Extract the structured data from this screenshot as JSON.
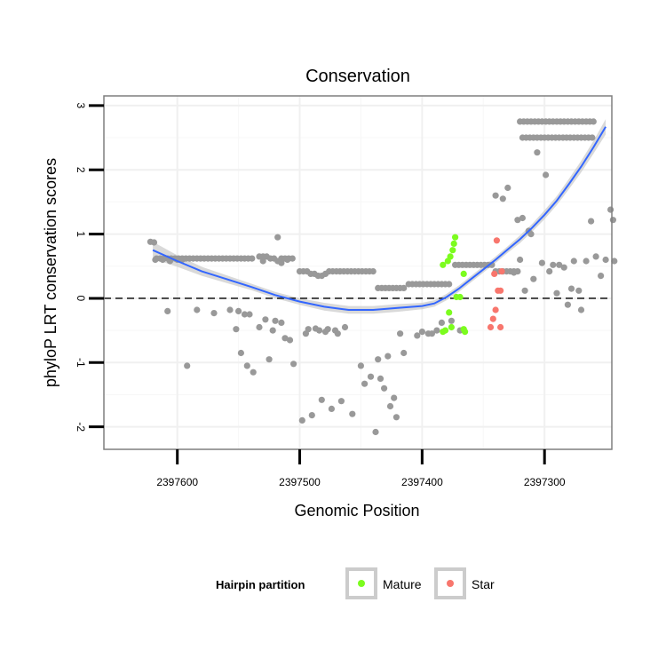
{
  "chart_data": {
    "type": "scatter",
    "title": "Conservation",
    "xlabel": "Genomic Position",
    "ylabel": "phyloP LRT conservation scores",
    "x_reversed": true,
    "xlim": [
      2397660,
      2397245
    ],
    "ylim": [
      -2.35,
      3.15
    ],
    "x_ticks": [
      2397600,
      2397500,
      2397400,
      2397300
    ],
    "x_tick_labels": [
      "2397600",
      "2397500",
      "2397400",
      "2397300"
    ],
    "y_ticks": [
      -2,
      -1,
      0,
      1,
      2,
      3
    ],
    "y_tick_labels": [
      "-2",
      "-1",
      "0",
      "1",
      "2",
      "3"
    ],
    "reference_line": {
      "y": 0,
      "style": "dashed"
    },
    "legend": {
      "title": "Hairpin partition",
      "placement": "bottom",
      "entries": [
        {
          "label": "Mature",
          "color": "#7CFC1E"
        },
        {
          "label": "Star",
          "color": "#F8766D"
        }
      ]
    },
    "colors": {
      "background_points": "#999999",
      "mature": "#7CFC1E",
      "star": "#F8766D",
      "smooth": "#3366FF",
      "ribbon": "#CCCCCC"
    },
    "series": [
      {
        "name": "Background",
        "points": [
          [
            2397619,
            0.87
          ],
          [
            2397617,
            0.62
          ],
          [
            2397614,
            0.62
          ],
          [
            2397611,
            0.62
          ],
          [
            2397608,
            0.62
          ],
          [
            2397605,
            0.62
          ],
          [
            2397602,
            0.62
          ],
          [
            2397599,
            0.62
          ],
          [
            2397596,
            0.62
          ],
          [
            2397593,
            0.62
          ],
          [
            2397590,
            0.62
          ],
          [
            2397587,
            0.62
          ],
          [
            2397584,
            0.62
          ],
          [
            2397581,
            0.62
          ],
          [
            2397578,
            0.62
          ],
          [
            2397575,
            0.62
          ],
          [
            2397572,
            0.62
          ],
          [
            2397569,
            0.62
          ],
          [
            2397566,
            0.62
          ],
          [
            2397563,
            0.62
          ],
          [
            2397560,
            0.62
          ],
          [
            2397557,
            0.62
          ],
          [
            2397554,
            0.62
          ],
          [
            2397551,
            0.62
          ],
          [
            2397548,
            0.62
          ],
          [
            2397545,
            0.62
          ],
          [
            2397542,
            0.62
          ],
          [
            2397539,
            0.62
          ],
          [
            2397533,
            0.65
          ],
          [
            2397530,
            0.65
          ],
          [
            2397527,
            0.65
          ],
          [
            2397524,
            0.62
          ],
          [
            2397521,
            0.62
          ],
          [
            2397518,
            0.58
          ],
          [
            2397515,
            0.62
          ],
          [
            2397512,
            0.62
          ],
          [
            2397509,
            0.62
          ],
          [
            2397506,
            0.62
          ],
          [
            2397618,
            0.6
          ],
          [
            2397612,
            0.6
          ],
          [
            2397606,
            0.58
          ],
          [
            2397600,
            0.6
          ],
          [
            2397596,
            0.6
          ],
          [
            2397530,
            0.58
          ],
          [
            2397515,
            0.55
          ],
          [
            2397510,
            0.6
          ],
          [
            2397500,
            0.42
          ],
          [
            2397497,
            0.42
          ],
          [
            2397494,
            0.42
          ],
          [
            2397491,
            0.38
          ],
          [
            2397488,
            0.38
          ],
          [
            2397485,
            0.35
          ],
          [
            2397482,
            0.35
          ],
          [
            2397479,
            0.38
          ],
          [
            2397476,
            0.42
          ],
          [
            2397473,
            0.42
          ],
          [
            2397470,
            0.42
          ],
          [
            2397467,
            0.42
          ],
          [
            2397464,
            0.42
          ],
          [
            2397461,
            0.42
          ],
          [
            2397458,
            0.42
          ],
          [
            2397455,
            0.42
          ],
          [
            2397452,
            0.42
          ],
          [
            2397449,
            0.42
          ],
          [
            2397446,
            0.42
          ],
          [
            2397443,
            0.42
          ],
          [
            2397440,
            0.42
          ],
          [
            2397436,
            0.16
          ],
          [
            2397433,
            0.16
          ],
          [
            2397430,
            0.16
          ],
          [
            2397427,
            0.16
          ],
          [
            2397424,
            0.16
          ],
          [
            2397421,
            0.16
          ],
          [
            2397418,
            0.16
          ],
          [
            2397415,
            0.16
          ],
          [
            2397411,
            0.22
          ],
          [
            2397408,
            0.22
          ],
          [
            2397405,
            0.22
          ],
          [
            2397402,
            0.22
          ],
          [
            2397399,
            0.22
          ],
          [
            2397396,
            0.22
          ],
          [
            2397393,
            0.22
          ],
          [
            2397390,
            0.22
          ],
          [
            2397387,
            0.22
          ],
          [
            2397384,
            0.22
          ],
          [
            2397381,
            0.22
          ],
          [
            2397378,
            0.22
          ],
          [
            2397373,
            0.52
          ],
          [
            2397370,
            0.52
          ],
          [
            2397367,
            0.52
          ],
          [
            2397364,
            0.52
          ],
          [
            2397361,
            0.52
          ],
          [
            2397358,
            0.52
          ],
          [
            2397355,
            0.52
          ],
          [
            2397352,
            0.52
          ],
          [
            2397349,
            0.52
          ],
          [
            2397346,
            0.52
          ],
          [
            2397343,
            0.52
          ],
          [
            2397340,
            0.42
          ],
          [
            2397337,
            0.42
          ],
          [
            2397334,
            0.42
          ],
          [
            2397331,
            0.42
          ],
          [
            2397328,
            0.42
          ],
          [
            2397325,
            0.42
          ],
          [
            2397322,
            0.42
          ],
          [
            2397320,
            2.75
          ],
          [
            2397317,
            2.75
          ],
          [
            2397314,
            2.75
          ],
          [
            2397311,
            2.75
          ],
          [
            2397308,
            2.75
          ],
          [
            2397305,
            2.75
          ],
          [
            2397302,
            2.75
          ],
          [
            2397299,
            2.75
          ],
          [
            2397296,
            2.75
          ],
          [
            2397293,
            2.75
          ],
          [
            2397290,
            2.75
          ],
          [
            2397287,
            2.75
          ],
          [
            2397284,
            2.75
          ],
          [
            2397281,
            2.75
          ],
          [
            2397278,
            2.75
          ],
          [
            2397275,
            2.75
          ],
          [
            2397272,
            2.75
          ],
          [
            2397269,
            2.75
          ],
          [
            2397266,
            2.75
          ],
          [
            2397263,
            2.75
          ],
          [
            2397260,
            2.75
          ],
          [
            2397318,
            2.5
          ],
          [
            2397315,
            2.5
          ],
          [
            2397312,
            2.5
          ],
          [
            2397309,
            2.5
          ],
          [
            2397306,
            2.5
          ],
          [
            2397303,
            2.5
          ],
          [
            2397300,
            2.5
          ],
          [
            2397297,
            2.5
          ],
          [
            2397294,
            2.5
          ],
          [
            2397291,
            2.5
          ],
          [
            2397288,
            2.5
          ],
          [
            2397285,
            2.5
          ],
          [
            2397282,
            2.5
          ],
          [
            2397279,
            2.5
          ],
          [
            2397276,
            2.5
          ],
          [
            2397273,
            2.5
          ],
          [
            2397270,
            2.5
          ],
          [
            2397267,
            2.5
          ],
          [
            2397264,
            2.5
          ],
          [
            2397261,
            2.5
          ],
          [
            2397622,
            0.88
          ],
          [
            2397608,
            -0.2
          ],
          [
            2397592,
            -1.05
          ],
          [
            2397584,
            -0.18
          ],
          [
            2397570,
            -0.23
          ],
          [
            2397557,
            -0.18
          ],
          [
            2397552,
            -0.48
          ],
          [
            2397550,
            -0.2
          ],
          [
            2397548,
            -0.85
          ],
          [
            2397545,
            -0.25
          ],
          [
            2397543,
            -1.05
          ],
          [
            2397541,
            -0.25
          ],
          [
            2397538,
            -1.15
          ],
          [
            2397533,
            -0.45
          ],
          [
            2397528,
            -0.33
          ],
          [
            2397525,
            -0.95
          ],
          [
            2397522,
            -0.5
          ],
          [
            2397520,
            -0.35
          ],
          [
            2397518,
            0.95
          ],
          [
            2397515,
            -0.38
          ],
          [
            2397512,
            -0.62
          ],
          [
            2397508,
            -0.65
          ],
          [
            2397505,
            -1.02
          ],
          [
            2397498,
            -1.9
          ],
          [
            2397495,
            -0.55
          ],
          [
            2397493,
            -0.48
          ],
          [
            2397490,
            -1.82
          ],
          [
            2397487,
            -0.47
          ],
          [
            2397484,
            -0.5
          ],
          [
            2397482,
            -1.58
          ],
          [
            2397479,
            -0.52
          ],
          [
            2397477,
            -0.48
          ],
          [
            2397474,
            -1.72
          ],
          [
            2397471,
            -0.5
          ],
          [
            2397469,
            -0.55
          ],
          [
            2397466,
            -1.6
          ],
          [
            2397463,
            -0.45
          ],
          [
            2397457,
            -1.8
          ],
          [
            2397450,
            -1.05
          ],
          [
            2397447,
            -1.33
          ],
          [
            2397442,
            -1.22
          ],
          [
            2397438,
            -2.08
          ],
          [
            2397436,
            -0.95
          ],
          [
            2397434,
            -1.25
          ],
          [
            2397431,
            -1.4
          ],
          [
            2397428,
            -0.9
          ],
          [
            2397426,
            -1.68
          ],
          [
            2397423,
            -1.55
          ],
          [
            2397421,
            -1.85
          ],
          [
            2397418,
            -0.55
          ],
          [
            2397415,
            -0.85
          ],
          [
            2397404,
            -0.58
          ],
          [
            2397400,
            -0.52
          ],
          [
            2397395,
            -0.55
          ],
          [
            2397392,
            -0.55
          ],
          [
            2397388,
            -0.5
          ],
          [
            2397384,
            -0.38
          ],
          [
            2397376,
            -0.35
          ],
          [
            2397369,
            -0.5
          ],
          [
            2397340,
            1.6
          ],
          [
            2397334,
            1.55
          ],
          [
            2397330,
            1.72
          ],
          [
            2397325,
            0.4
          ],
          [
            2397322,
            1.22
          ],
          [
            2397320,
            0.6
          ],
          [
            2397318,
            1.25
          ],
          [
            2397316,
            0.12
          ],
          [
            2397313,
            1.05
          ],
          [
            2397311,
            1.0
          ],
          [
            2397309,
            0.3
          ],
          [
            2397306,
            2.27
          ],
          [
            2397302,
            0.55
          ],
          [
            2397299,
            1.92
          ],
          [
            2397296,
            0.42
          ],
          [
            2397293,
            0.52
          ],
          [
            2397290,
            0.08
          ],
          [
            2397288,
            0.52
          ],
          [
            2397284,
            0.48
          ],
          [
            2397281,
            -0.1
          ],
          [
            2397278,
            0.15
          ],
          [
            2397276,
            0.58
          ],
          [
            2397272,
            0.12
          ],
          [
            2397270,
            -0.18
          ],
          [
            2397266,
            0.58
          ],
          [
            2397262,
            1.2
          ],
          [
            2397258,
            0.65
          ],
          [
            2397254,
            0.35
          ],
          [
            2397250,
            0.6
          ],
          [
            2397246,
            1.38
          ],
          [
            2397244,
            1.22
          ],
          [
            2397243,
            0.58
          ]
        ]
      },
      {
        "name": "Mature",
        "points": [
          [
            2397383,
            0.52
          ],
          [
            2397379,
            0.58
          ],
          [
            2397377,
            0.65
          ],
          [
            2397375,
            0.75
          ],
          [
            2397374,
            0.85
          ],
          [
            2397373,
            0.95
          ],
          [
            2397378,
            -0.22
          ],
          [
            2397376,
            -0.45
          ],
          [
            2397381,
            -0.5
          ],
          [
            2397383,
            -0.52
          ],
          [
            2397372,
            0.02
          ],
          [
            2397369,
            0.02
          ],
          [
            2397366,
            -0.48
          ],
          [
            2397365,
            -0.52
          ],
          [
            2397366,
            0.38
          ]
        ]
      },
      {
        "name": "Star",
        "points": [
          [
            2397339,
            0.9
          ],
          [
            2397335,
            0.42
          ],
          [
            2397341,
            0.38
          ],
          [
            2397338,
            0.12
          ],
          [
            2397336,
            0.12
          ],
          [
            2397340,
            -0.18
          ],
          [
            2397342,
            -0.32
          ],
          [
            2397344,
            -0.45
          ],
          [
            2397336,
            -0.45
          ]
        ]
      }
    ],
    "smooth_fit": {
      "x": [
        2397620,
        2397600,
        2397580,
        2397560,
        2397540,
        2397520,
        2397500,
        2397480,
        2397460,
        2397440,
        2397420,
        2397400,
        2397390,
        2397380,
        2397370,
        2397360,
        2397350,
        2397340,
        2397330,
        2397320,
        2397310,
        2397300,
        2397290,
        2397280,
        2397270,
        2397260,
        2397250
      ],
      "y": [
        0.75,
        0.58,
        0.42,
        0.3,
        0.18,
        0.05,
        -0.05,
        -0.13,
        -0.18,
        -0.18,
        -0.15,
        -0.12,
        -0.08,
        0.02,
        0.15,
        0.3,
        0.45,
        0.6,
        0.76,
        0.92,
        1.1,
        1.3,
        1.52,
        1.78,
        2.05,
        2.35,
        2.67
      ],
      "se": [
        0.13,
        0.09,
        0.07,
        0.06,
        0.05,
        0.05,
        0.05,
        0.06,
        0.06,
        0.06,
        0.06,
        0.05,
        0.05,
        0.05,
        0.05,
        0.05,
        0.05,
        0.05,
        0.05,
        0.06,
        0.06,
        0.07,
        0.07,
        0.08,
        0.09,
        0.1,
        0.12
      ]
    }
  }
}
